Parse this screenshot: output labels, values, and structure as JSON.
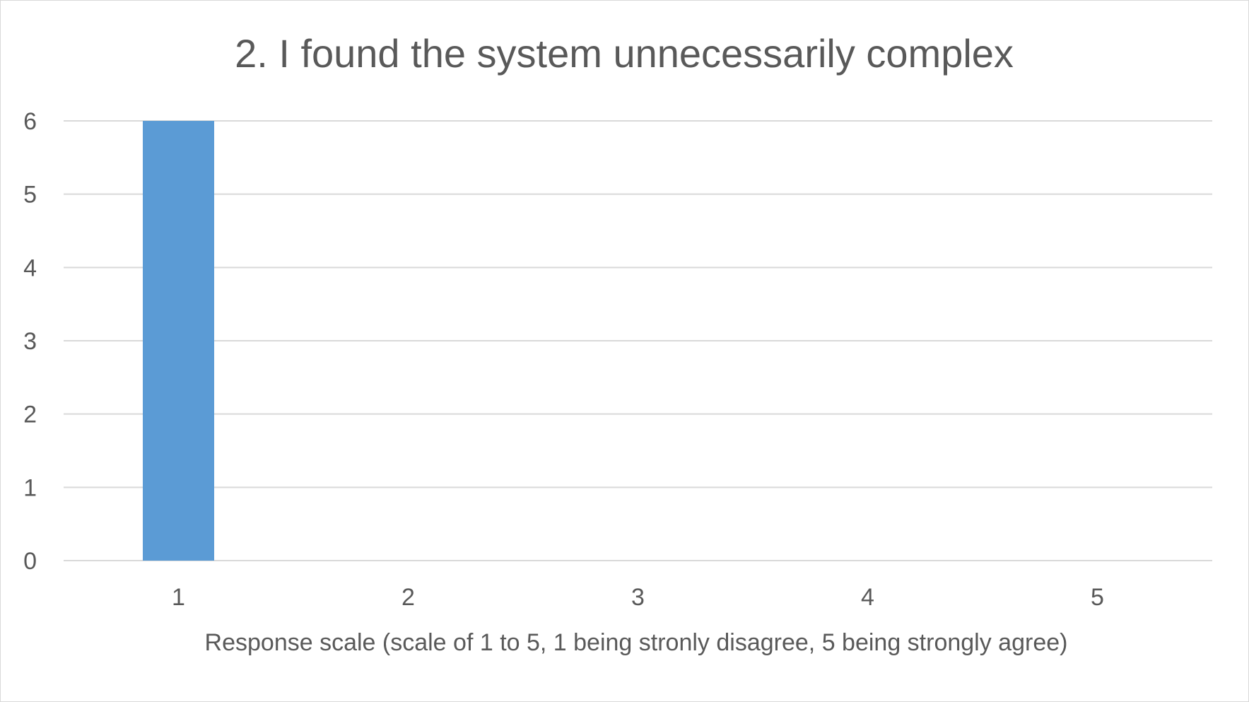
{
  "chart_data": {
    "type": "bar",
    "title": "2. I found the system unnecessarily complex",
    "xlabel": "Response scale (scale of 1 to 5, 1 being stronly disagree, 5 being strongly agree)",
    "ylabel": "",
    "categories": [
      "1",
      "2",
      "3",
      "4",
      "5"
    ],
    "values": [
      6,
      0,
      0,
      0,
      0
    ],
    "ylim": [
      0,
      6
    ],
    "yticks": [
      "0",
      "1",
      "2",
      "3",
      "4",
      "5",
      "6"
    ],
    "grid": true,
    "colors": {
      "bar": "#5b9bd5",
      "grid": "#d9d9d9",
      "text": "#595959"
    }
  }
}
